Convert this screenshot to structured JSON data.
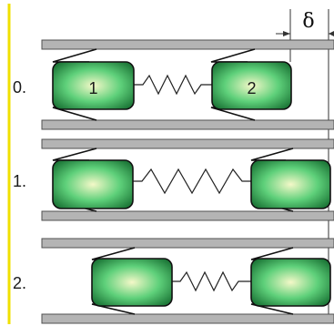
{
  "colors": {
    "divider": "#f0e000",
    "rail_fill": "#b4b4b4",
    "rail_stroke": "#505050",
    "block_center": "#f4f8c8",
    "block_mid": "#5ed07a",
    "block_edge": "#1f7a3a",
    "block_stroke": "#111111",
    "spring": "#222222",
    "dimension": "#333333"
  },
  "dimension": {
    "symbol": "δ"
  },
  "stages": [
    {
      "label": "0.",
      "block_left": "1",
      "block_right": "2"
    },
    {
      "label": "1.",
      "block_left": "",
      "block_right": ""
    },
    {
      "label": "2.",
      "block_left": "",
      "block_right": ""
    }
  ]
}
